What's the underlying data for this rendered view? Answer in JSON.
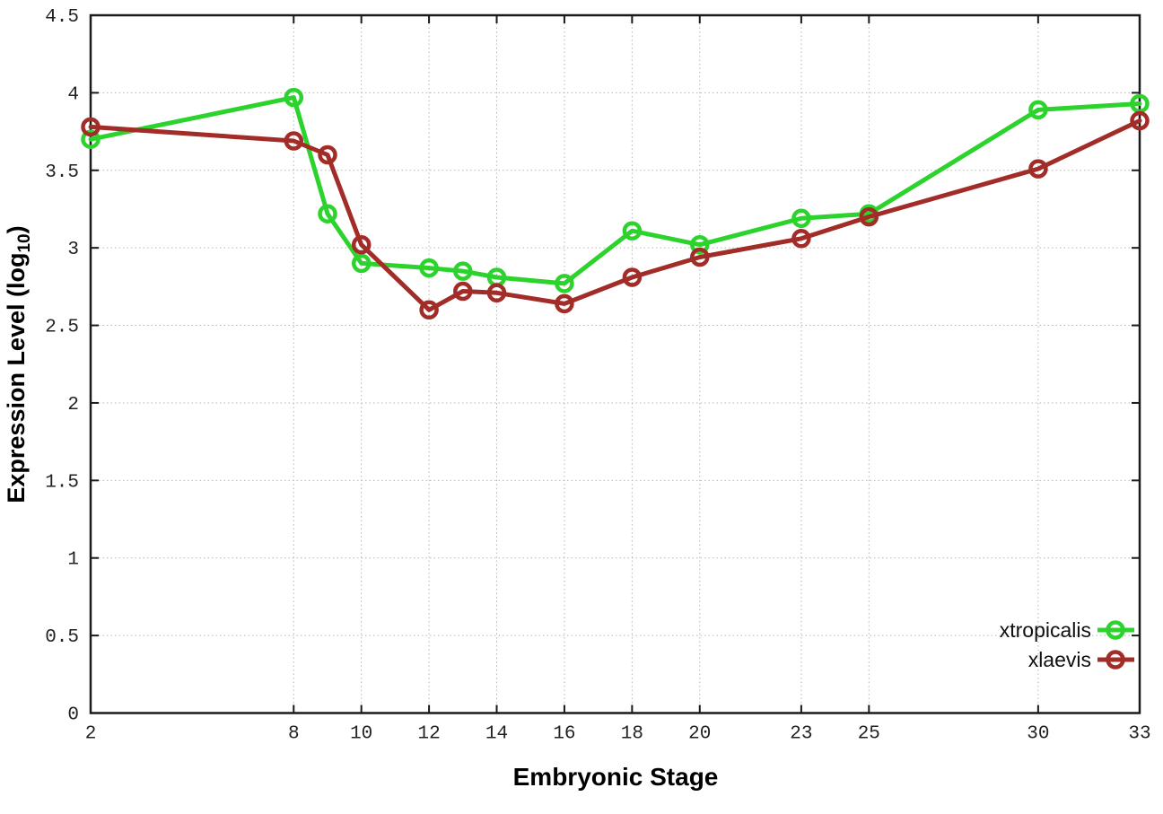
{
  "page": {
    "background": "#ffffff"
  },
  "chart_data": {
    "type": "line",
    "title": "",
    "xlabel": "Embryonic Stage",
    "ylabel": "Expression Level (log10)",
    "ylabel_parts": {
      "pre": "Expression Level (log",
      "sub": "10",
      "post": ")"
    },
    "x": [
      2,
      8,
      9,
      10,
      12,
      13,
      14,
      16,
      18,
      20,
      23,
      25,
      30,
      33
    ],
    "series": [
      {
        "name": "xtropicalis",
        "color": "#2cd32c",
        "values": [
          3.7,
          3.97,
          3.22,
          2.9,
          2.87,
          2.85,
          2.81,
          2.77,
          3.11,
          3.02,
          3.19,
          3.22,
          3.89,
          3.93
        ]
      },
      {
        "name": "xlaevis",
        "color": "#a22c27",
        "values": [
          3.78,
          3.69,
          3.6,
          3.02,
          2.6,
          2.72,
          2.71,
          2.64,
          2.81,
          2.94,
          3.06,
          3.2,
          3.51,
          3.82
        ]
      }
    ],
    "xlim": [
      2,
      33
    ],
    "ylim": [
      0,
      4.5
    ],
    "xticks": {
      "values": [
        2,
        8,
        10,
        12,
        14,
        16,
        18,
        20,
        23,
        25,
        30,
        33
      ],
      "labels": [
        "2",
        "8",
        "10",
        "12",
        "14",
        "16",
        "18",
        "20",
        "23",
        "25",
        "30",
        "33"
      ]
    },
    "yticks": {
      "values": [
        0,
        0.5,
        1,
        1.5,
        2,
        2.5,
        3,
        3.5,
        4,
        4.5
      ],
      "labels": [
        "0",
        "0.5",
        "1",
        "1.5",
        "2",
        "2.5",
        "3",
        "3.5",
        "4",
        "4.5"
      ]
    },
    "grid": true,
    "marker": "open-circle",
    "legend": {
      "position": "inside-right-lower",
      "entries": [
        "xtropicalis",
        "xlaevis"
      ]
    },
    "grid_color": "#b5b5b5",
    "frame_color": "#1a1a1a",
    "text_color": "#222222"
  }
}
